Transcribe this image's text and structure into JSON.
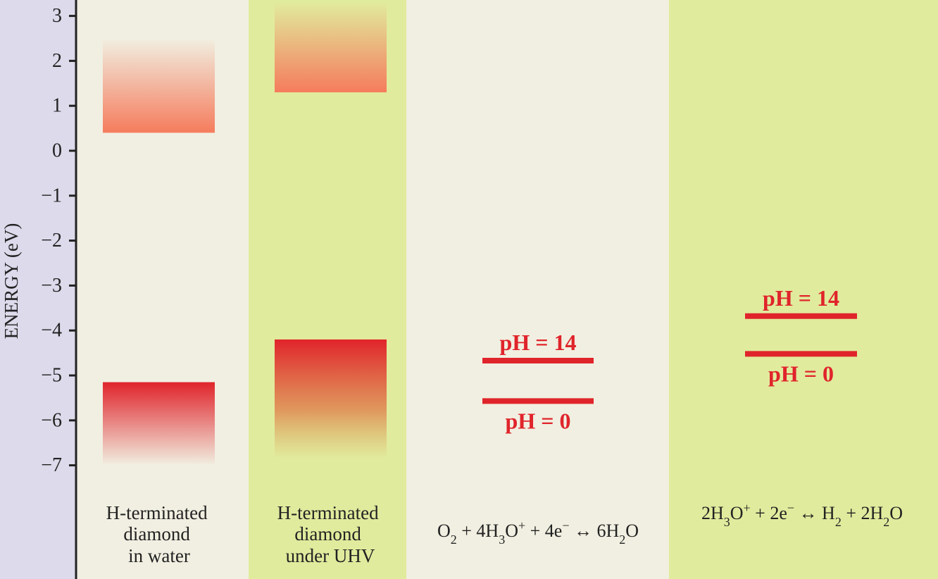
{
  "colors": {
    "axis_panel": "#dddaeb",
    "panel_light": "#f1efe1",
    "panel_green": "#e1eb9d",
    "conduction_orange": "#f57c5d",
    "valence_red": "#e0242b",
    "valence_tan": "#d9a35a",
    "redox_line": "#e0242b",
    "axis_line": "#222222"
  },
  "chart_data": {
    "type": "energy-level diagram",
    "ylabel": "ENERGY (eV)",
    "ylim": [
      -7.8,
      3.3
    ],
    "yticks": [
      3,
      2,
      1,
      0,
      -1,
      -2,
      -3,
      -4,
      -5,
      -6,
      -7
    ],
    "ytick_labels": [
      "3",
      "2",
      "1",
      "0",
      "−1",
      "−2",
      "−3",
      "−4",
      "−5",
      "−6",
      "−7"
    ],
    "grid": false,
    "columns": [
      {
        "id": "water",
        "label_lines": [
          "H-terminated",
          "diamond",
          "in water"
        ],
        "conduction_band": {
          "edge": 0.4,
          "fades_to": 2.5
        },
        "valence_band": {
          "edge": -5.15,
          "fades_to": -7.0,
          "color": "red"
        }
      },
      {
        "id": "uhv",
        "label_lines": [
          "H-terminated",
          "diamond",
          "under UHV"
        ],
        "conduction_band": {
          "edge": 1.3,
          "fades_to": 3.3
        },
        "valence_band": {
          "edge": -4.2,
          "fades_to": -6.85,
          "color": "red-to-tan"
        }
      },
      {
        "id": "oxygen",
        "equation_parts": [
          "O",
          "2",
          " + 4H",
          "3",
          "O",
          "+",
          " + 4e",
          "−",
          " ↔ 6H",
          "2",
          "O"
        ],
        "levels": [
          {
            "label": "pH = 14",
            "energy": -4.67,
            "label_position": "above"
          },
          {
            "label": "pH = 0",
            "energy": -5.57,
            "label_position": "below"
          }
        ]
      },
      {
        "id": "hydrogen",
        "equation_parts": [
          "2H",
          "3",
          "O",
          "+",
          " + 2e",
          "−",
          " ↔ H",
          "2",
          " + 2H",
          "2",
          "O"
        ],
        "levels": [
          {
            "label": "pH = 14",
            "energy": -3.68,
            "label_position": "above"
          },
          {
            "label": "pH = 0",
            "energy": -4.52,
            "label_position": "below"
          }
        ]
      }
    ]
  }
}
